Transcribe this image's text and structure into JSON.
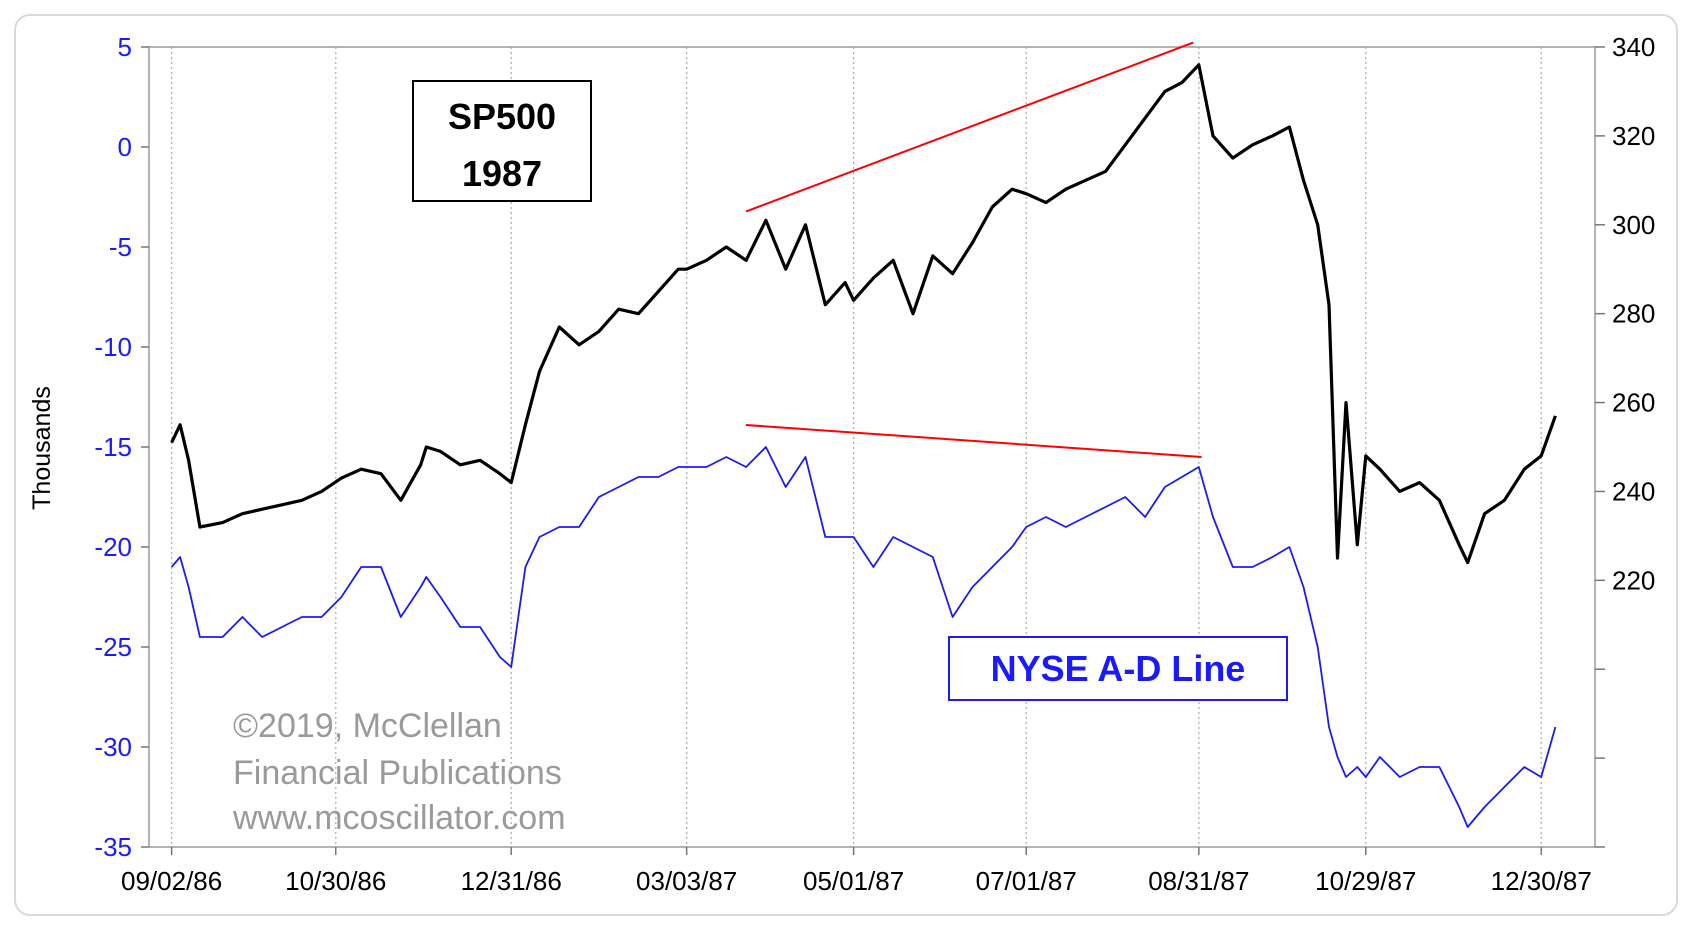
{
  "chart_data": {
    "type": "line",
    "title_box": {
      "line1": "SP500",
      "line2": "1987"
    },
    "ylabel_left": "Thousands",
    "ylabel_right": "",
    "xlabel": "",
    "left_axis": {
      "ylim": [
        -35,
        5
      ],
      "ticks": [
        5,
        0,
        -5,
        -10,
        -15,
        -20,
        -25,
        -30,
        -35
      ],
      "color": "#1a1aff"
    },
    "right_axis": {
      "ylim": [
        160,
        340
      ],
      "ticks": [
        340,
        320,
        300,
        280,
        260,
        240,
        220
      ],
      "color": "#000000"
    },
    "x_ticks": [
      "09/02/86",
      "10/30/86",
      "12/31/86",
      "03/03/87",
      "05/01/87",
      "07/01/87",
      "08/31/87",
      "10/29/87",
      "12/30/87"
    ],
    "x_range": [
      "1986-08-25",
      "1988-01-18"
    ],
    "grid": {
      "vertical": true,
      "horizontal": false,
      "style": "dotted"
    },
    "series": [
      {
        "name": "SP500",
        "axis": "right",
        "color": "#000000",
        "x": [
          "1986-09-02",
          "1986-09-05",
          "1986-09-08",
          "1986-09-12",
          "1986-09-20",
          "1986-09-27",
          "1986-10-04",
          "1986-10-11",
          "1986-10-18",
          "1986-10-25",
          "1986-11-01",
          "1986-11-08",
          "1986-11-15",
          "1986-11-22",
          "1986-11-29",
          "1986-12-01",
          "1986-12-06",
          "1986-12-13",
          "1986-12-20",
          "1986-12-27",
          "1986-12-31",
          "1987-01-05",
          "1987-01-10",
          "1987-01-17",
          "1987-01-24",
          "1987-01-31",
          "1987-02-07",
          "1987-02-14",
          "1987-02-21",
          "1987-02-28",
          "1987-03-03",
          "1987-03-10",
          "1987-03-17",
          "1987-03-24",
          "1987-03-31",
          "1987-04-07",
          "1987-04-14",
          "1987-04-21",
          "1987-04-28",
          "1987-05-01",
          "1987-05-08",
          "1987-05-15",
          "1987-05-22",
          "1987-05-29",
          "1987-06-05",
          "1987-06-12",
          "1987-06-19",
          "1987-06-26",
          "1987-07-01",
          "1987-07-08",
          "1987-07-15",
          "1987-07-22",
          "1987-07-29",
          "1987-08-05",
          "1987-08-12",
          "1987-08-19",
          "1987-08-25",
          "1987-08-31",
          "1987-09-05",
          "1987-09-12",
          "1987-09-19",
          "1987-09-26",
          "1987-10-02",
          "1987-10-07",
          "1987-10-12",
          "1987-10-16",
          "1987-10-19",
          "1987-10-22",
          "1987-10-26",
          "1987-10-29",
          "1987-11-03",
          "1987-11-10",
          "1987-11-17",
          "1987-11-24",
          "1987-12-01",
          "1987-12-04",
          "1987-12-10",
          "1987-12-17",
          "1987-12-24",
          "1987-12-30",
          "1988-01-04"
        ],
        "values": [
          251,
          255,
          247,
          232,
          233,
          235,
          236,
          237,
          238,
          240,
          243,
          245,
          244,
          238,
          246,
          250,
          249,
          246,
          247,
          244,
          242,
          255,
          267,
          277,
          273,
          276,
          281,
          280,
          285,
          290,
          290,
          292,
          295,
          292,
          301,
          290,
          300,
          282,
          287,
          283,
          288,
          292,
          280,
          293,
          289,
          296,
          304,
          308,
          307,
          305,
          308,
          310,
          312,
          318,
          324,
          330,
          332,
          336,
          320,
          315,
          318,
          320,
          322,
          310,
          300,
          282,
          225,
          260,
          228,
          248,
          245,
          240,
          242,
          238,
          228,
          224,
          235,
          238,
          245,
          248,
          257
        ]
      },
      {
        "name": "NYSE A-D Line",
        "axis": "left",
        "color": "#1a1aff",
        "x": [
          "1986-09-02",
          "1986-09-05",
          "1986-09-08",
          "1986-09-12",
          "1986-09-20",
          "1986-09-27",
          "1986-10-04",
          "1986-10-11",
          "1986-10-18",
          "1986-10-25",
          "1986-11-01",
          "1986-11-08",
          "1986-11-15",
          "1986-11-22",
          "1986-11-29",
          "1986-12-01",
          "1986-12-06",
          "1986-12-13",
          "1986-12-20",
          "1986-12-27",
          "1986-12-31",
          "1987-01-05",
          "1987-01-10",
          "1987-01-17",
          "1987-01-24",
          "1987-01-31",
          "1987-02-07",
          "1987-02-14",
          "1987-02-21",
          "1987-02-28",
          "1987-03-03",
          "1987-03-10",
          "1987-03-17",
          "1987-03-24",
          "1987-03-31",
          "1987-04-07",
          "1987-04-14",
          "1987-04-21",
          "1987-04-28",
          "1987-05-01",
          "1987-05-08",
          "1987-05-15",
          "1987-05-22",
          "1987-05-29",
          "1987-06-05",
          "1987-06-12",
          "1987-06-19",
          "1987-06-26",
          "1987-07-01",
          "1987-07-08",
          "1987-07-15",
          "1987-07-22",
          "1987-07-29",
          "1987-08-05",
          "1987-08-12",
          "1987-08-19",
          "1987-08-25",
          "1987-08-31",
          "1987-09-05",
          "1987-09-12",
          "1987-09-19",
          "1987-09-26",
          "1987-10-02",
          "1987-10-07",
          "1987-10-12",
          "1987-10-16",
          "1987-10-19",
          "1987-10-22",
          "1987-10-26",
          "1987-10-29",
          "1987-11-03",
          "1987-11-10",
          "1987-11-17",
          "1987-11-24",
          "1987-12-01",
          "1987-12-04",
          "1987-12-10",
          "1987-12-17",
          "1987-12-24",
          "1987-12-30",
          "1988-01-04"
        ],
        "values": [
          -21,
          -20.5,
          -22,
          -24.5,
          -24.5,
          -23.5,
          -24.5,
          -24,
          -23.5,
          -23.5,
          -22.5,
          -21,
          -21,
          -23.5,
          -22,
          -21.5,
          -22.5,
          -24,
          -24,
          -25.5,
          -26,
          -21,
          -19.5,
          -19,
          -19,
          -17.5,
          -17,
          -16.5,
          -16.5,
          -16,
          -16,
          -16,
          -15.5,
          -16,
          -15,
          -17,
          -15.5,
          -19.5,
          -19.5,
          -19.5,
          -21,
          -19.5,
          -20,
          -20.5,
          -23.5,
          -22,
          -21,
          -20,
          -19,
          -18.5,
          -19,
          -18.5,
          -18,
          -17.5,
          -18.5,
          -17,
          -16.5,
          -16,
          -18.5,
          -21,
          -21,
          -20.5,
          -20,
          -22,
          -25,
          -29,
          -30.5,
          -31.5,
          -31,
          -31.5,
          -30.5,
          -31.5,
          -31,
          -31,
          -33,
          -34,
          -33,
          -32,
          -31,
          -31.5,
          -29
        ]
      }
    ],
    "trend_lines": [
      {
        "axis": "right",
        "color": "#ff0000",
        "from": [
          "1987-03-24",
          303
        ],
        "to": [
          "1987-08-29",
          341
        ]
      },
      {
        "axis": "left",
        "color": "#ff0000",
        "from": [
          "1987-03-24",
          -13.9
        ],
        "to": [
          "1987-09-01",
          -15.5
        ]
      }
    ],
    "annotations": {
      "series_label": "NYSE A-D Line",
      "copyright": [
        "©2019, McClellan",
        "Financial Publications",
        "www.mcoscillator.com"
      ]
    }
  }
}
